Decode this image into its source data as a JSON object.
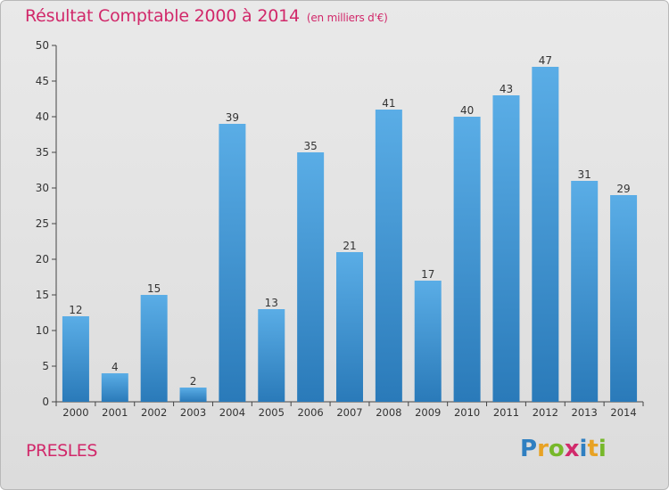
{
  "chart_data": {
    "type": "bar",
    "title": "Résultat Comptable 2000 à 2014",
    "subtitle": "(en milliers d'€)",
    "categories": [
      "2000",
      "2001",
      "2002",
      "2003",
      "2004",
      "2005",
      "2006",
      "2007",
      "2008",
      "2009",
      "2010",
      "2011",
      "2012",
      "2013",
      "2014"
    ],
    "values": [
      12,
      4,
      15,
      2,
      39,
      13,
      35,
      21,
      41,
      17,
      40,
      43,
      47,
      31,
      29
    ],
    "ylim": [
      0,
      50
    ],
    "yticks": [
      0,
      5,
      10,
      15,
      20,
      25,
      30,
      35,
      40,
      45,
      50
    ],
    "xlabel": "",
    "ylabel": "",
    "grid": false,
    "bar_color_top": "#5aade6",
    "bar_color_bottom": "#2a7ab9"
  },
  "place_name": "PRESLES",
  "logo": {
    "letters": [
      "P",
      "r",
      "o",
      "x",
      "i",
      "t",
      "i"
    ],
    "colors": [
      "#2f7fc1",
      "#e8a224",
      "#77b82a",
      "#d12a6b",
      "#2f7fc1",
      "#e8a224",
      "#77b82a"
    ]
  }
}
